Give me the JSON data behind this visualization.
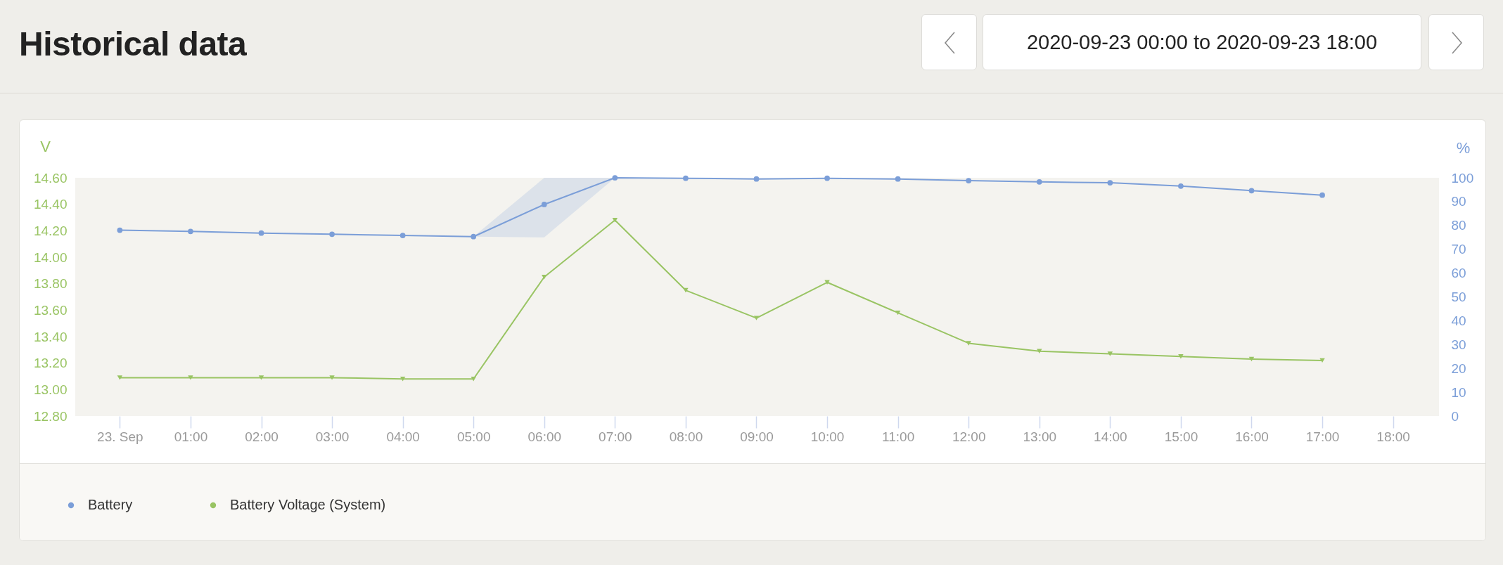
{
  "chart_data": {
    "type": "line",
    "title": "Historical data",
    "subtitle": "2020-09-23 00:00 to 2020-09-23 18:00",
    "ylabel": "V",
    "y2label": "%",
    "x": [
      0,
      1,
      2,
      3,
      4,
      5,
      6,
      7,
      8,
      9,
      10,
      11,
      12,
      13,
      14,
      15,
      16,
      17
    ],
    "xlim": [
      -0.63,
      18.65
    ],
    "xticks": [
      {
        "value": 0,
        "label": "23. Sep"
      },
      {
        "value": 1,
        "label": "01:00"
      },
      {
        "value": 2,
        "label": "02:00"
      },
      {
        "value": 3,
        "label": "03:00"
      },
      {
        "value": 4,
        "label": "04:00"
      },
      {
        "value": 5,
        "label": "05:00"
      },
      {
        "value": 6,
        "label": "06:00"
      },
      {
        "value": 7,
        "label": "07:00"
      },
      {
        "value": 8,
        "label": "08:00"
      },
      {
        "value": 9,
        "label": "09:00"
      },
      {
        "value": 10,
        "label": "10:00"
      },
      {
        "value": 11,
        "label": "11:00"
      },
      {
        "value": 12,
        "label": "12:00"
      },
      {
        "value": 13,
        "label": "13:00"
      },
      {
        "value": 14,
        "label": "14:00"
      },
      {
        "value": 15,
        "label": "15:00"
      },
      {
        "value": 16,
        "label": "16:00"
      },
      {
        "value": 17,
        "label": "17:00"
      },
      {
        "value": 18,
        "label": "18:00"
      }
    ],
    "ylim": [
      12.8,
      14.6
    ],
    "yticks": [
      {
        "value": 12.8,
        "label": "12.80"
      },
      {
        "value": 13.0,
        "label": "13.00"
      },
      {
        "value": 13.2,
        "label": "13.20"
      },
      {
        "value": 13.4,
        "label": "13.40"
      },
      {
        "value": 13.6,
        "label": "13.60"
      },
      {
        "value": 13.8,
        "label": "13.80"
      },
      {
        "value": 14.0,
        "label": "14.00"
      },
      {
        "value": 14.2,
        "label": "14.20"
      },
      {
        "value": 14.4,
        "label": "14.40"
      },
      {
        "value": 14.6,
        "label": "14.60"
      }
    ],
    "y2lim": [
      0,
      100
    ],
    "y2ticks": [
      0,
      10,
      20,
      30,
      40,
      50,
      60,
      70,
      80,
      90,
      100
    ],
    "series": [
      {
        "name": "Battery",
        "color": "#7b9ed8",
        "axis": "y2",
        "marker": "circle",
        "values": [
          78.0,
          77.5,
          76.8,
          76.3,
          75.8,
          75.3,
          88.8,
          100,
          99.8,
          99.5,
          99.8,
          99.5,
          98.8,
          98.3,
          97.9,
          96.5,
          94.6,
          92.7
        ],
        "lower": [
          null,
          null,
          null,
          null,
          null,
          75.3,
          75,
          100,
          null,
          null,
          null,
          null,
          null,
          null,
          null,
          null,
          null,
          null
        ],
        "upper": [
          null,
          null,
          null,
          null,
          null,
          75.3,
          100,
          100,
          null,
          null,
          null,
          null,
          null,
          null,
          null,
          null,
          null,
          null
        ]
      },
      {
        "name": "Battery Voltage (System)",
        "color": "#99c463",
        "marker": "triangle",
        "values": [
          13.09,
          13.09,
          13.09,
          13.09,
          13.08,
          13.08,
          13.85,
          14.28,
          13.75,
          13.54,
          13.81,
          13.58,
          13.35,
          13.29,
          13.27,
          13.25,
          13.23,
          13.22
        ]
      }
    ],
    "grid": false,
    "legend": "bottom left",
    "line_style": "solid"
  }
}
